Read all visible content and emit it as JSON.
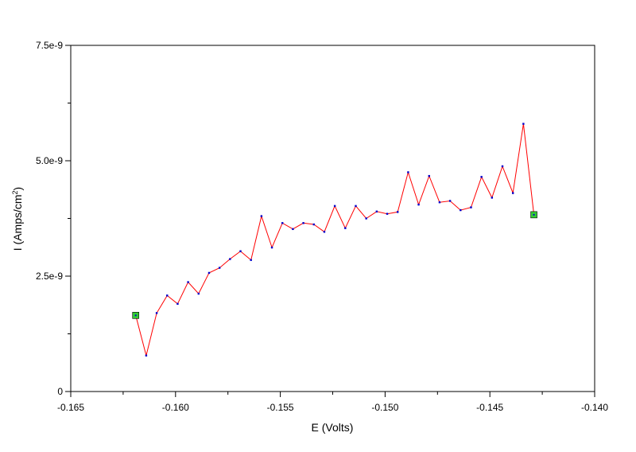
{
  "chart_data": {
    "type": "line",
    "xlabel": "E (Volts)",
    "ylabel": {
      "prefix": "I (Amps/cm",
      "superscript": "2",
      "suffix": ")"
    },
    "xlim": [
      -0.165,
      -0.14
    ],
    "ylim": [
      0,
      7.5e-09
    ],
    "x_ticks": [
      {
        "value": -0.165,
        "label": "-0.165"
      },
      {
        "value": -0.16,
        "label": "-0.160"
      },
      {
        "value": -0.155,
        "label": "-0.155"
      },
      {
        "value": -0.15,
        "label": "-0.150"
      },
      {
        "value": -0.145,
        "label": "-0.145"
      },
      {
        "value": -0.14,
        "label": "-0.140"
      }
    ],
    "x_minor_ticks": [
      -0.1625,
      -0.1575,
      -0.1525,
      -0.1475,
      -0.1425
    ],
    "y_ticks": [
      {
        "value": 0,
        "label": "0"
      },
      {
        "value": 2.5e-09,
        "label": "2.5e-9"
      },
      {
        "value": 5e-09,
        "label": "5.0e-9"
      },
      {
        "value": 7.5e-09,
        "label": "7.5e-9"
      }
    ],
    "y_minor_ticks": [
      1.25e-09,
      3.75e-09,
      6.25e-09
    ],
    "grid": false,
    "line_color": "#ff0000",
    "marker_color": "#0000cc",
    "endpoint_marker_color": "#33cc33",
    "series": [
      {
        "x": [
          -0.1619,
          -0.1614,
          -0.1609,
          -0.1604,
          -0.1599,
          -0.1594,
          -0.1589,
          -0.1584,
          -0.1579,
          -0.1574,
          -0.1569,
          -0.1564,
          -0.1559,
          -0.1554,
          -0.1549,
          -0.1544,
          -0.1539,
          -0.1534,
          -0.1529,
          -0.1524,
          -0.1519,
          -0.1514,
          -0.1509,
          -0.1504,
          -0.1499,
          -0.1494,
          -0.1489,
          -0.1484,
          -0.1479,
          -0.1474,
          -0.1469,
          -0.1464,
          -0.1459,
          -0.1454,
          -0.1449,
          -0.1444,
          -0.1439,
          -0.1434,
          -0.1429
        ],
        "y": [
          1.65e-09,
          7.8e-10,
          1.7e-09,
          2.08e-09,
          1.9e-09,
          2.37e-09,
          2.12e-09,
          2.57e-09,
          2.68e-09,
          2.87e-09,
          3.04e-09,
          2.85e-09,
          3.8e-09,
          3.12e-09,
          3.65e-09,
          3.52e-09,
          3.65e-09,
          3.62e-09,
          3.46e-09,
          4.02e-09,
          3.54e-09,
          4.02e-09,
          3.75e-09,
          3.9e-09,
          3.85e-09,
          3.89e-09,
          4.75e-09,
          4.05e-09,
          4.67e-09,
          4.1e-09,
          4.13e-09,
          3.93e-09,
          3.99e-09,
          4.65e-09,
          4.2e-09,
          4.88e-09,
          4.3e-09,
          5.8e-09,
          3.83e-09
        ]
      }
    ]
  }
}
